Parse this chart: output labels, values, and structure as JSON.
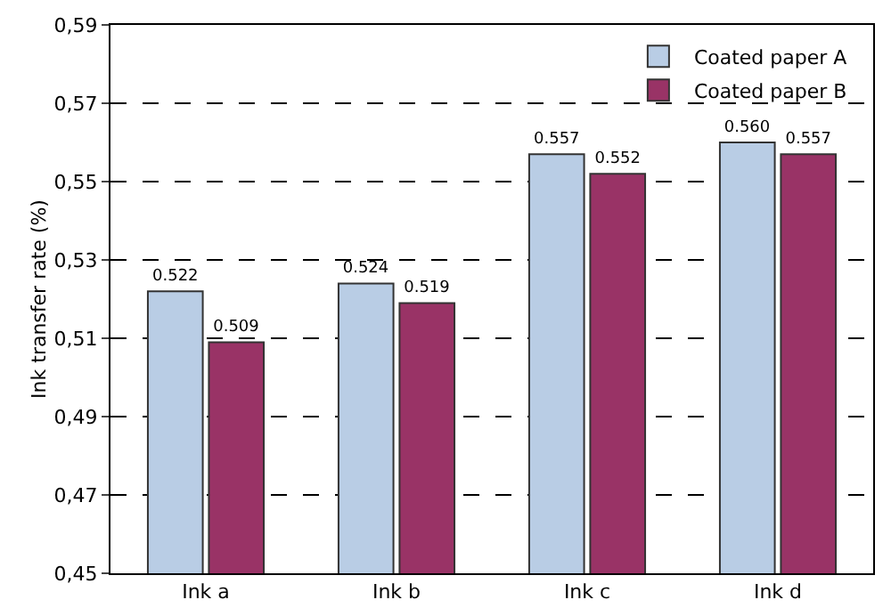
{
  "chart_data": {
    "type": "bar",
    "ylabel": "Ink transfer rate (%)",
    "categories": [
      "Ink a",
      "Ink b",
      "Ink c",
      "Ink d"
    ],
    "series": [
      {
        "name": "Coated paper A",
        "color": "#b9cde5",
        "values": [
          0.522,
          0.524,
          0.557,
          0.56
        ],
        "value_labels": [
          "0.522",
          "0.524",
          "0.557",
          "0.560"
        ]
      },
      {
        "name": "Coated paper B",
        "color": "#993366",
        "values": [
          0.509,
          0.519,
          0.552,
          0.557
        ],
        "value_labels": [
          "0.509",
          "0.519",
          "0.552",
          "0.557"
        ]
      }
    ],
    "ylim": [
      0.45,
      0.59
    ],
    "yticks": [
      {
        "value": 0.45,
        "label": "0,45"
      },
      {
        "value": 0.47,
        "label": "0,47"
      },
      {
        "value": 0.49,
        "label": "0,49"
      },
      {
        "value": 0.51,
        "label": "0,51"
      },
      {
        "value": 0.53,
        "label": "0,53"
      },
      {
        "value": 0.55,
        "label": "0,55"
      },
      {
        "value": 0.57,
        "label": "0,57"
      },
      {
        "value": 0.59,
        "label": "0,59"
      }
    ],
    "grid": "y",
    "legend": "top right"
  }
}
